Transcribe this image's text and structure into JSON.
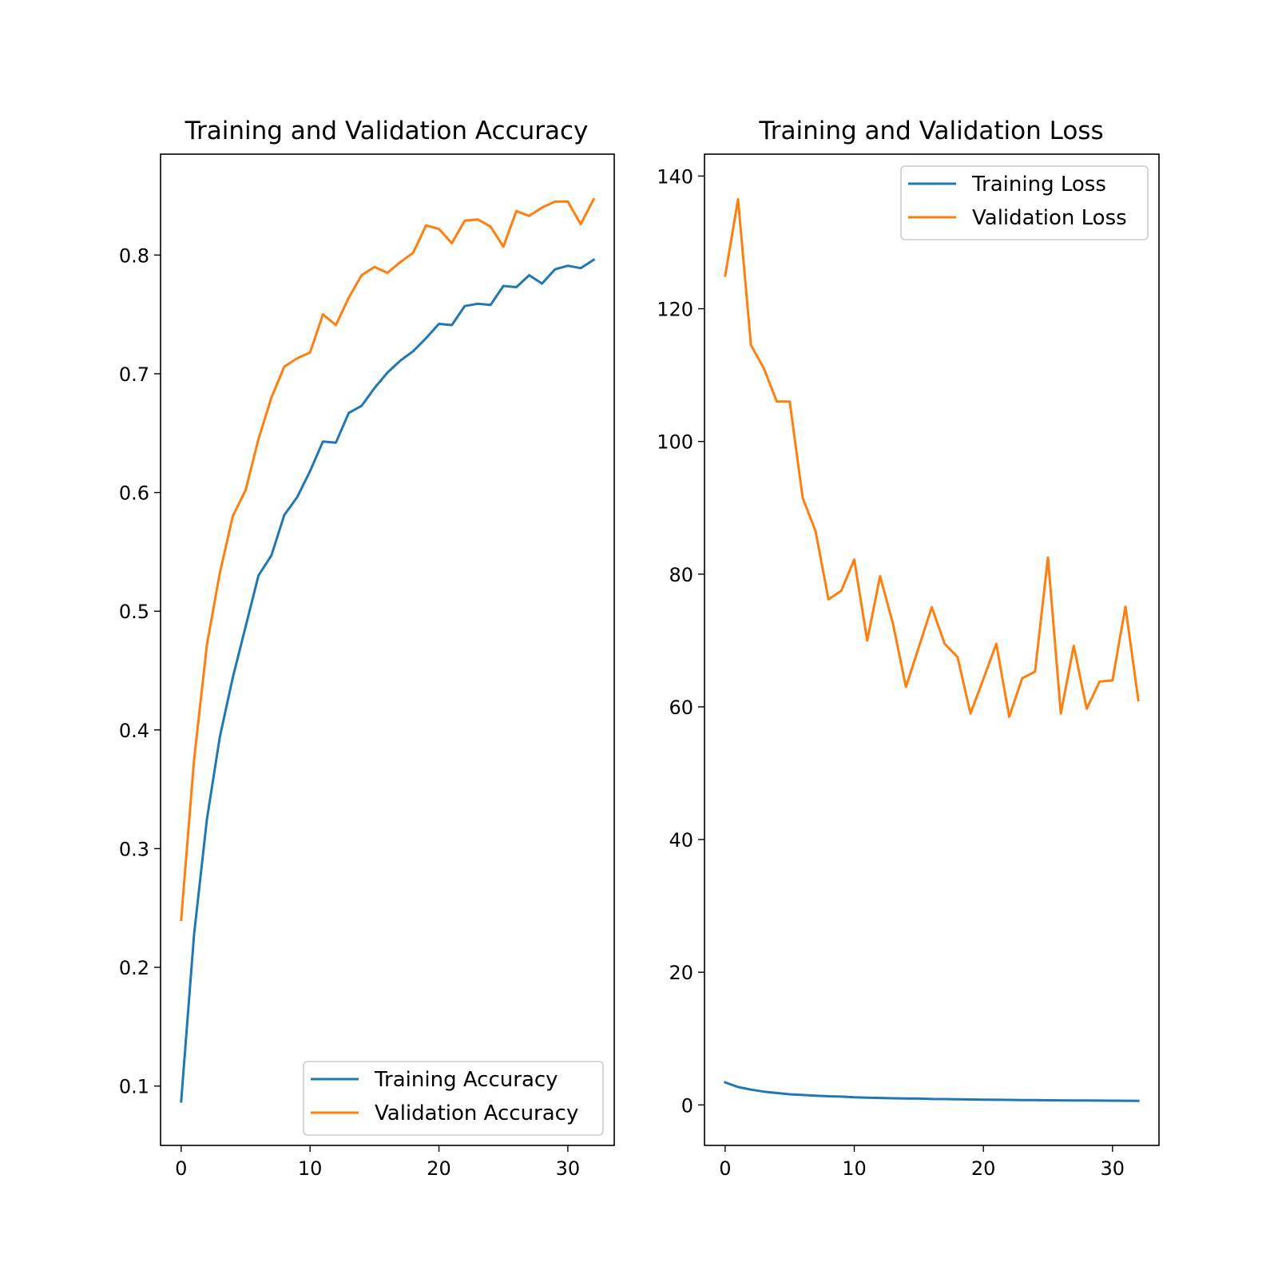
{
  "colors": {
    "training": "#1f77b4",
    "validation": "#ff7f0e",
    "axes": "#000000",
    "legend_border": "#cccccc"
  },
  "chart_data": [
    {
      "type": "line",
      "title": "Training and Validation Accuracy",
      "xlabel": "",
      "ylabel": "",
      "xlim": [
        -1.6,
        33.6
      ],
      "ylim": [
        0.05,
        0.885
      ],
      "xticks": [
        0,
        10,
        20,
        30
      ],
      "yticks": [
        0.1,
        0.2,
        0.3,
        0.4,
        0.5,
        0.6,
        0.7,
        0.8
      ],
      "ytick_labels": [
        "0.1",
        "0.2",
        "0.3",
        "0.4",
        "0.5",
        "0.6",
        "0.7",
        "0.8"
      ],
      "xtick_labels": [
        "0",
        "10",
        "20",
        "30"
      ],
      "grid": false,
      "legend_position": "lower-right",
      "x": [
        0,
        1,
        2,
        3,
        4,
        5,
        6,
        7,
        8,
        9,
        10,
        11,
        12,
        13,
        14,
        15,
        16,
        17,
        18,
        19,
        20,
        21,
        22,
        23,
        24,
        25,
        26,
        27,
        28,
        29,
        30,
        31,
        32
      ],
      "series": [
        {
          "name": "Training Accuracy",
          "color_key": "training",
          "values": [
            0.087,
            0.228,
            0.325,
            0.394,
            0.444,
            0.487,
            0.53,
            0.547,
            0.581,
            0.596,
            0.618,
            0.643,
            0.642,
            0.667,
            0.673,
            0.688,
            0.701,
            0.711,
            0.719,
            0.73,
            0.742,
            0.741,
            0.757,
            0.759,
            0.758,
            0.774,
            0.773,
            0.783,
            0.776,
            0.788,
            0.791,
            0.789,
            0.796
          ]
        },
        {
          "name": "Validation Accuracy",
          "color_key": "validation",
          "values": [
            0.24,
            0.375,
            0.472,
            0.532,
            0.58,
            0.602,
            0.645,
            0.68,
            0.706,
            0.713,
            0.718,
            0.75,
            0.741,
            0.764,
            0.783,
            0.79,
            0.785,
            0.794,
            0.802,
            0.825,
            0.822,
            0.81,
            0.829,
            0.83,
            0.824,
            0.807,
            0.837,
            0.833,
            0.84,
            0.845,
            0.845,
            0.826,
            0.847
          ]
        }
      ]
    },
    {
      "type": "line",
      "title": "Training and Validation Loss",
      "xlabel": "",
      "ylabel": "",
      "xlim": [
        -1.6,
        33.6
      ],
      "ylim": [
        -6.1,
        143.3
      ],
      "xticks": [
        0,
        10,
        20,
        30
      ],
      "yticks": [
        0,
        20,
        40,
        60,
        80,
        100,
        120,
        140
      ],
      "ytick_labels": [
        "0",
        "20",
        "40",
        "60",
        "80",
        "100",
        "120",
        "140"
      ],
      "xtick_labels": [
        "0",
        "10",
        "20",
        "30"
      ],
      "grid": false,
      "legend_position": "upper-right",
      "x": [
        0,
        1,
        2,
        3,
        4,
        5,
        6,
        7,
        8,
        9,
        10,
        11,
        12,
        13,
        14,
        15,
        16,
        17,
        18,
        19,
        20,
        21,
        22,
        23,
        24,
        25,
        26,
        27,
        28,
        29,
        30,
        31,
        32
      ],
      "series": [
        {
          "name": "Training Loss",
          "color_key": "training",
          "values": [
            3.4,
            2.7,
            2.3,
            2.0,
            1.8,
            1.6,
            1.5,
            1.4,
            1.3,
            1.25,
            1.15,
            1.1,
            1.05,
            1.0,
            0.98,
            0.95,
            0.9,
            0.88,
            0.85,
            0.82,
            0.8,
            0.78,
            0.76,
            0.74,
            0.72,
            0.7,
            0.69,
            0.67,
            0.66,
            0.65,
            0.64,
            0.63,
            0.62
          ]
        },
        {
          "name": "Validation Loss",
          "color_key": "validation",
          "values": [
            125,
            136.5,
            114.5,
            111,
            106,
            106,
            91.5,
            86.5,
            76.2,
            77.5,
            82.2,
            70,
            79.7,
            72.5,
            63,
            69,
            75,
            69.5,
            67.5,
            59,
            64.2,
            69.5,
            58.5,
            64.3,
            65.3,
            82.5,
            59,
            69.2,
            59.7,
            63.8,
            64,
            75.1,
            61
          ]
        }
      ]
    }
  ]
}
